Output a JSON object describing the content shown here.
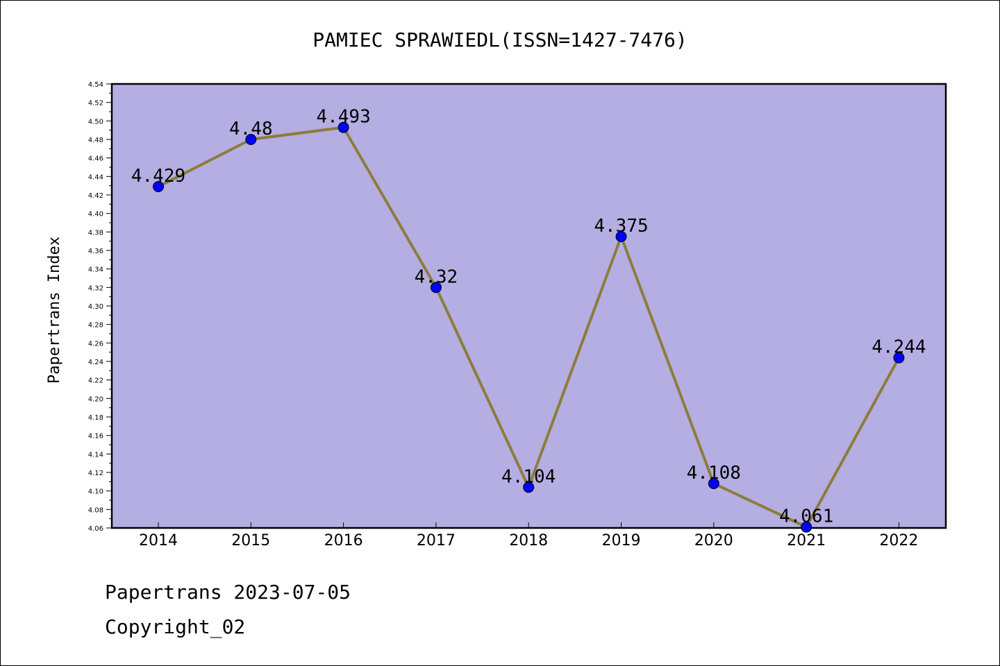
{
  "chart_data": {
    "type": "line",
    "title": "PAMIEC SPRAWIEDL(ISSN=1427-7476)",
    "xlabel": "",
    "ylabel": "Papertrans Index",
    "categories": [
      "2014",
      "2015",
      "2016",
      "2017",
      "2018",
      "2019",
      "2020",
      "2021",
      "2022"
    ],
    "series": [
      {
        "values": [
          4.429,
          4.48,
          4.493,
          4.32,
          4.104,
          4.375,
          4.108,
          4.061,
          4.244
        ],
        "labels": [
          "4.429",
          "4.48",
          "4.493",
          "4.32",
          "4.104",
          "4.375",
          "4.108",
          "4.061",
          "4.244"
        ]
      }
    ],
    "ylim": [
      4.06,
      4.54
    ],
    "yticks": [
      "4.06",
      "4.08",
      "4.10",
      "4.12",
      "4.14",
      "4.16",
      "4.18",
      "4.20",
      "4.22",
      "4.24",
      "4.26",
      "4.28",
      "4.30",
      "4.32",
      "4.34",
      "4.36",
      "4.38",
      "4.40",
      "4.42",
      "4.44",
      "4.46",
      "4.48",
      "4.50",
      "4.52",
      "4.54"
    ],
    "grid": false,
    "legend": "none",
    "colors": {
      "plot_background": "#b5aee2",
      "line": "#8b7d3a",
      "marker": "#0000ff"
    }
  },
  "footer": {
    "line1": "Papertrans 2023-07-05",
    "line2": "Copyright_02"
  }
}
